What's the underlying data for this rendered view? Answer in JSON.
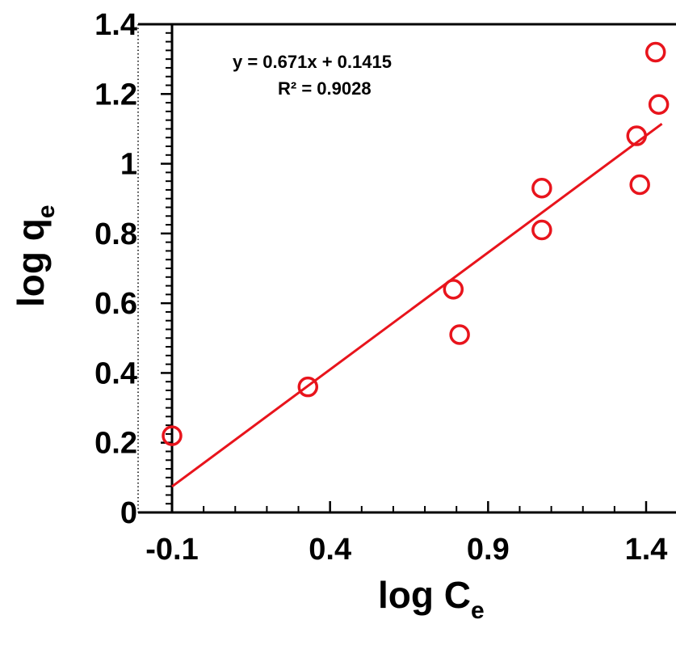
{
  "chart_data": {
    "type": "scatter",
    "xlabel_main": "log C",
    "xlabel_sub": "e",
    "ylabel_main": "log q",
    "ylabel_sub": "e",
    "xlim": [
      -0.13,
      1.45
    ],
    "ylim": [
      0,
      1.4
    ],
    "x_ticks": [
      -0.1,
      0.4,
      0.9,
      1.4
    ],
    "x_tick_labels": [
      "-0.1",
      "0.4",
      "0.9",
      "1.4"
    ],
    "y_ticks": [
      0,
      0.2,
      0.4,
      0.6,
      0.8,
      1,
      1.2,
      1.4
    ],
    "y_tick_labels": [
      "0",
      "0.2",
      "0.4",
      "0.6",
      "0.8",
      "1",
      "1.2",
      "1.4"
    ],
    "marker_color": "#e8141c",
    "line_color": "#e8141c",
    "points": [
      {
        "x": -0.1,
        "y": 0.22
      },
      {
        "x": 0.33,
        "y": 0.36
      },
      {
        "x": 0.79,
        "y": 0.64
      },
      {
        "x": 0.81,
        "y": 0.51
      },
      {
        "x": 1.07,
        "y": 0.93
      },
      {
        "x": 1.07,
        "y": 0.81
      },
      {
        "x": 1.37,
        "y": 1.08
      },
      {
        "x": 1.38,
        "y": 0.94
      },
      {
        "x": 1.43,
        "y": 1.32
      },
      {
        "x": 1.44,
        "y": 1.17
      }
    ],
    "trendline": {
      "slope": 0.671,
      "intercept": 0.1415,
      "x_range": [
        -0.1,
        1.45
      ]
    },
    "equation_text": "y = 0.671x + 0.1415",
    "r2_text": "R² = 0.9028"
  }
}
